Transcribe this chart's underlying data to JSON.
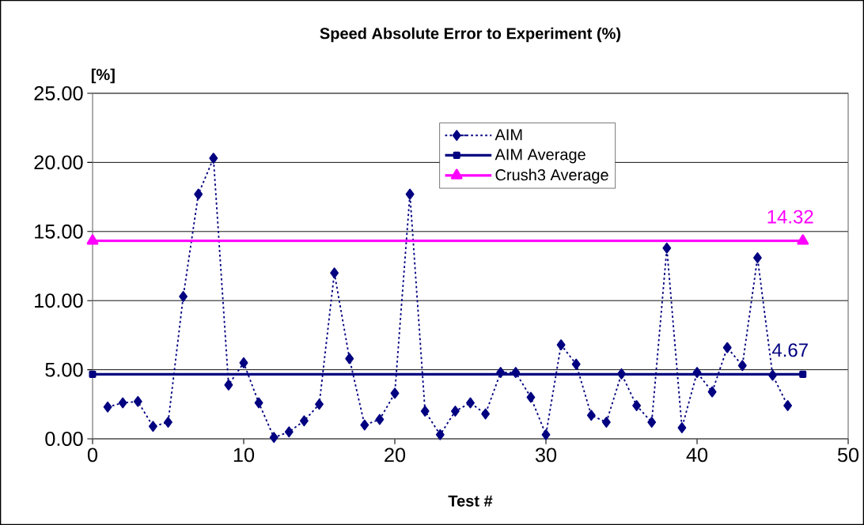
{
  "chart_data": {
    "type": "line",
    "title": "Speed Absolute Error to Experiment (%)",
    "xlabel": "Test #",
    "ylabel": "[%]",
    "xlim": [
      0,
      50
    ],
    "xticks": [
      0,
      10,
      20,
      30,
      40,
      50
    ],
    "ylim": [
      0,
      25
    ],
    "yticks": [
      {
        "value": 0,
        "label": "0.00"
      },
      {
        "value": 5,
        "label": "5.00"
      },
      {
        "value": 10,
        "label": "10.00"
      },
      {
        "value": 15,
        "label": "15.00"
      },
      {
        "value": 20,
        "label": "20.00"
      },
      {
        "value": 25,
        "label": "25.00"
      }
    ],
    "grid": "y",
    "legend": "top",
    "series": [
      {
        "name": "AIM",
        "color": "#000080",
        "marker": "diamond",
        "line_style": "dotted",
        "x": [
          1,
          2,
          3,
          4,
          5,
          6,
          7,
          8,
          9,
          10,
          11,
          12,
          13,
          14,
          15,
          16,
          17,
          18,
          19,
          20,
          21,
          22,
          23,
          24,
          25,
          26,
          27,
          28,
          29,
          30,
          31,
          32,
          33,
          34,
          35,
          36,
          37,
          38,
          39,
          40,
          41,
          42,
          43,
          44,
          45,
          46
        ],
        "values": [
          2.3,
          2.6,
          2.7,
          0.9,
          1.2,
          10.3,
          17.7,
          20.3,
          3.9,
          5.5,
          2.6,
          0.1,
          0.5,
          1.3,
          2.5,
          12.0,
          5.8,
          1.0,
          1.4,
          3.3,
          17.7,
          2.0,
          0.3,
          2.0,
          2.6,
          1.8,
          4.8,
          4.8,
          3.0,
          0.3,
          6.8,
          5.4,
          1.7,
          1.2,
          4.7,
          2.4,
          1.2,
          13.8,
          0.8,
          4.8,
          3.4,
          6.6,
          5.3,
          13.1,
          4.6,
          2.4
        ]
      },
      {
        "name": "AIM Average",
        "color": "#000080",
        "marker": "square",
        "line_style": "solid",
        "x": [
          0,
          47
        ],
        "values": [
          4.67,
          4.67
        ]
      },
      {
        "name": "Crush3 Average",
        "color": "#ff00ff",
        "marker": "triangle",
        "line_style": "solid",
        "x": [
          0,
          47
        ],
        "values": [
          14.32,
          14.32
        ]
      }
    ],
    "annotations": [
      {
        "text": "14.32",
        "x": 47,
        "y": 14.32
      },
      {
        "text": "4.67",
        "x": 47,
        "y": 4.67
      }
    ]
  }
}
